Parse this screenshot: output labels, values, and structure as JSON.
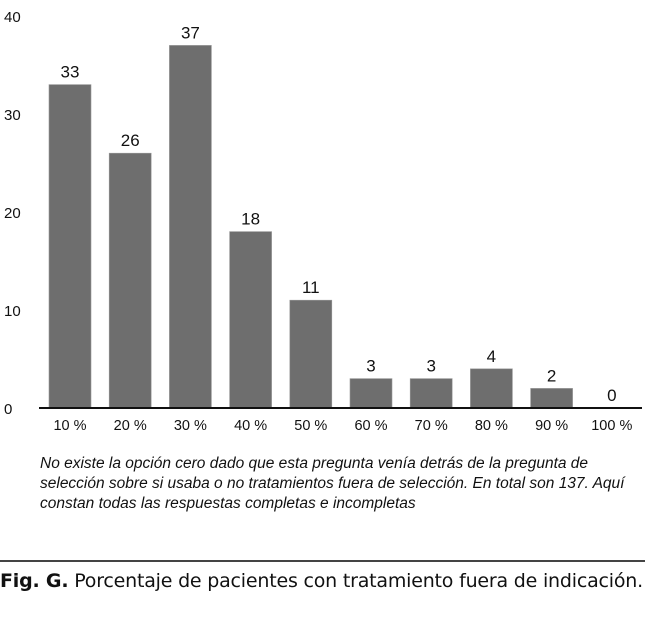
{
  "chart_data": {
    "type": "bar",
    "categories": [
      "10 %",
      "20 %",
      "30 %",
      "40 %",
      "50 %",
      "60 %",
      "70 %",
      "80 %",
      "90 %",
      "100 %"
    ],
    "values": [
      33,
      26,
      37,
      18,
      11,
      3,
      3,
      4,
      2,
      0
    ],
    "ylim": [
      0,
      40
    ],
    "yticks": [
      0,
      10,
      20,
      30,
      40
    ],
    "grid": false,
    "bar_color": "#6e6e6e",
    "data_labels": true
  },
  "note": "No existe la opción cero dado que esta pregunta venía detrás de la pregunta de selección sobre si usaba o no tratamientos fuera de selección. En total son 137. Aquí constan todas las respuestas completas e incompletas",
  "caption": {
    "label": "Fig. G.",
    "text": "Porcentaje de pacientes con tratamiento fuera de indicación."
  }
}
